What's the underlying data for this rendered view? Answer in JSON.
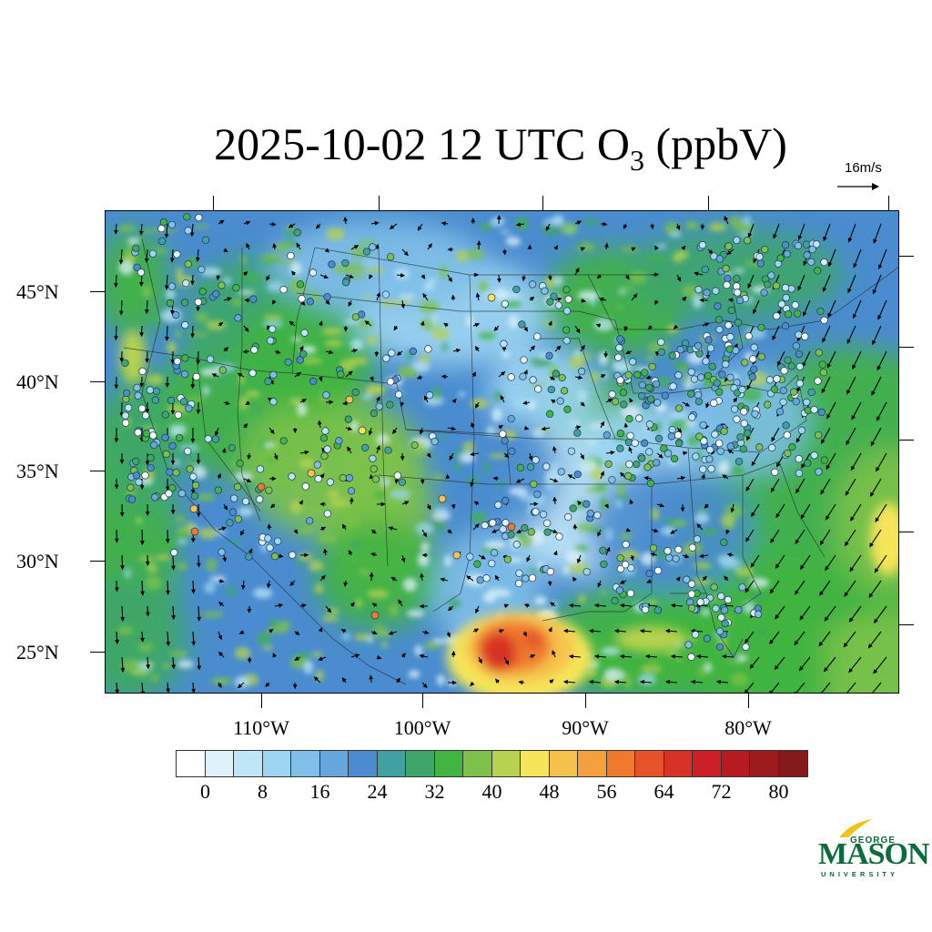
{
  "title": {
    "prefix": "2025-10-02 12 UTC O",
    "subscript": "3",
    "suffix": " (ppbV)"
  },
  "reference_vector": {
    "label": "16m/s"
  },
  "latitude_labels": [
    "45°N",
    "40°N",
    "35°N",
    "30°N",
    "25°N"
  ],
  "longitude_labels": [
    "110°W",
    "100°W",
    "90°W",
    "80°W"
  ],
  "colorbar": {
    "labels": [
      "0",
      "8",
      "16",
      "24",
      "32",
      "40",
      "48",
      "56",
      "64",
      "72",
      "80"
    ],
    "colors": [
      "#ffffff",
      "#dff2fb",
      "#bfe6f7",
      "#9dd5f2",
      "#7fbfe8",
      "#64a6dd",
      "#4a8ccf",
      "#41a0a0",
      "#3fa66b",
      "#41b441",
      "#7cc24a",
      "#b6d250",
      "#f5e55a",
      "#f7c24c",
      "#f5a03e",
      "#ef7a2e",
      "#e5532a",
      "#d83226",
      "#cc1f26",
      "#b51c22",
      "#9b1b1e",
      "#841a1c"
    ]
  },
  "logo": {
    "line1": "GEORGE",
    "line2": "MASON",
    "line3": "UNIVERSITY"
  }
}
